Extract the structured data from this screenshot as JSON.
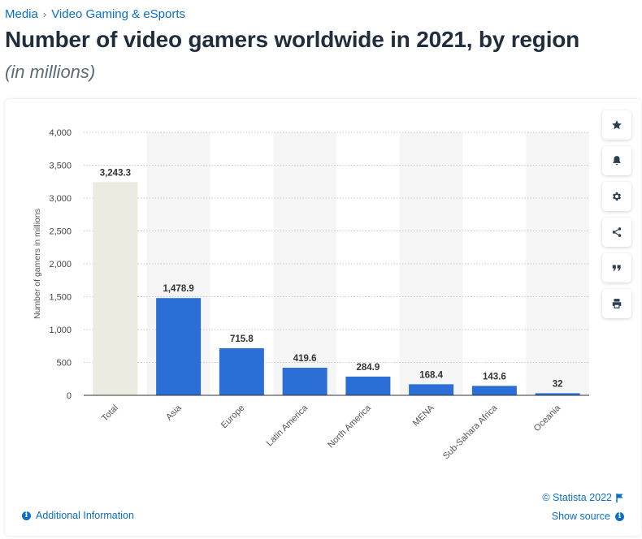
{
  "breadcrumb": {
    "items": [
      "Media",
      "Video Gaming & eSports"
    ],
    "separator": "›"
  },
  "page": {
    "title": "Number of video gamers worldwide in 2021, by region",
    "subtitle": "(in millions)"
  },
  "toolbar": {
    "icons": [
      "star-icon",
      "bell-icon",
      "gear-icon",
      "share-icon",
      "quote-icon",
      "print-icon"
    ]
  },
  "footer": {
    "additional_info": "Additional Information",
    "copyright": "© Statista 2022",
    "show_source": "Show source"
  },
  "colors": {
    "bar": "#2b6fd6",
    "total_bar": "#ecebe2",
    "link": "#0c6ec6",
    "band": "#f5f5f5"
  },
  "chart_data": {
    "type": "bar",
    "title": "",
    "xlabel": "",
    "ylabel": "Number of gamers in millions",
    "ylim": [
      0,
      4000
    ],
    "yticks": [
      0,
      500,
      1000,
      1500,
      2000,
      2500,
      3000,
      3500,
      4000
    ],
    "ytick_labels": [
      "0",
      "500",
      "1,000",
      "1,500",
      "2,000",
      "2,500",
      "3,000",
      "3,500",
      "4,000"
    ],
    "categories": [
      "Total",
      "Asia",
      "Europe",
      "Latin America",
      "North America",
      "MENA",
      "Sub-Sahara Africa",
      "Oceania"
    ],
    "values": [
      3243.3,
      1478.9,
      715.8,
      419.6,
      284.9,
      168.4,
      143.6,
      32
    ],
    "value_labels": [
      "3,243.3",
      "1,478.9",
      "715.8",
      "419.6",
      "284.9",
      "168.4",
      "143.6",
      "32"
    ],
    "highlight_first": true,
    "grid": true,
    "legend": "none"
  }
}
